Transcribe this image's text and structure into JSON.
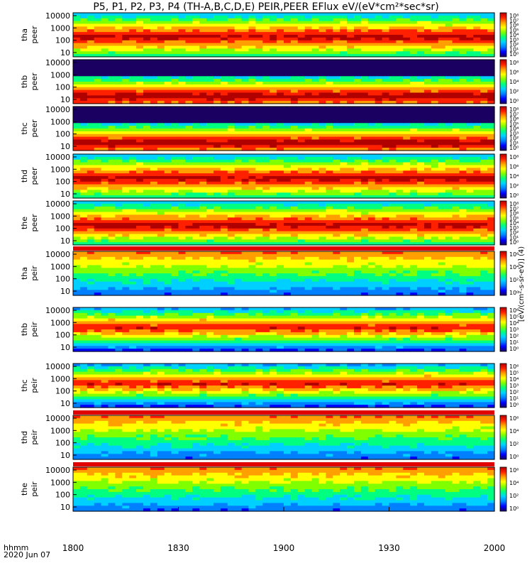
{
  "title": "P5, P1, P2, P3, P4 (TH-A,B,C,D,E) PEIR,PEER EFlux eV/(eV*cm²*sec*sr)",
  "footer": {
    "time_label": "hhmm",
    "date_label": "2020 Jun 07"
  },
  "chart_data": {
    "type": "heatmap",
    "x_ticks": [
      "1800",
      "1830",
      "1900",
      "1930",
      "2000"
    ],
    "x_range": [
      "18:00",
      "20:00"
    ],
    "colorbar_unit_label": "[eV/(cm²-s-sr-eV)] (4)",
    "colorbar_unit_label_ion": "[eV/(cm²-s-sr-eV)]",
    "panels": [
      {
        "probe": "tha",
        "species": "peer",
        "y_ticks": [
          "10000",
          "1000",
          "100",
          "10"
        ],
        "y_scale": "log",
        "colorbar_ticks": [
          "10⁸",
          "10⁷",
          "10⁶",
          "10⁵",
          "10⁴",
          "10³",
          "10²",
          "10¹",
          "10⁰"
        ]
      },
      {
        "probe": "thb",
        "species": "peer",
        "y_ticks": [
          "10000",
          "1000",
          "100",
          "10"
        ],
        "y_scale": "log",
        "colorbar_ticks": [
          "10⁸",
          "10⁶",
          "10⁴",
          "10²",
          "10⁰"
        ]
      },
      {
        "probe": "thc",
        "species": "peer",
        "y_ticks": [
          "10000",
          "1000",
          "100",
          "10"
        ],
        "y_scale": "log",
        "colorbar_ticks": [
          "10⁸",
          "10⁷",
          "10⁶",
          "10⁵",
          "10⁴",
          "10³",
          "10²",
          "10¹",
          "10⁰"
        ]
      },
      {
        "probe": "thd",
        "species": "peer",
        "y_ticks": [
          "10000",
          "1000",
          "100",
          "10"
        ],
        "y_scale": "log",
        "colorbar_ticks": [
          "10⁸",
          "10⁶",
          "10⁴",
          "10²",
          "10⁰"
        ]
      },
      {
        "probe": "the",
        "species": "peer",
        "y_ticks": [
          "10000",
          "1000",
          "100",
          "10"
        ],
        "y_scale": "log",
        "colorbar_ticks": [
          "10⁸",
          "10⁷",
          "10⁶",
          "10⁵",
          "10⁴",
          "10³",
          "10²",
          "10¹",
          "10⁰"
        ]
      },
      {
        "probe": "tha",
        "species": "peir",
        "y_ticks": [
          "10000",
          "1000",
          "100",
          "10"
        ],
        "y_scale": "log",
        "colorbar_ticks": [
          "10⁶",
          "10⁴",
          "10²",
          "10⁰"
        ]
      },
      {
        "probe": "thb",
        "species": "peir",
        "y_ticks": [
          "10000",
          "1000",
          "100",
          "10"
        ],
        "y_scale": "log",
        "colorbar_ticks": [
          "10⁶",
          "10⁵",
          "10⁴",
          "10³",
          "10²",
          "10¹",
          "10⁰"
        ]
      },
      {
        "probe": "thc",
        "species": "peir",
        "y_ticks": [
          "10000",
          "1000",
          "100",
          "10"
        ],
        "y_scale": "log",
        "colorbar_ticks": [
          "10⁶",
          "10⁵",
          "10⁴",
          "10³",
          "10²",
          "10¹",
          "10⁰"
        ]
      },
      {
        "probe": "thd",
        "species": "peir",
        "y_ticks": [
          "10000",
          "1000",
          "100",
          "10"
        ],
        "y_scale": "log",
        "colorbar_ticks": [
          "10⁶",
          "10⁴",
          "10²",
          "10⁰"
        ]
      },
      {
        "probe": "the",
        "species": "peir",
        "y_ticks": [
          "10000",
          "1000",
          "100",
          "10"
        ],
        "y_scale": "log",
        "colorbar_ticks": [
          "10⁶",
          "10⁴",
          "10²",
          "10⁰"
        ]
      }
    ],
    "colormap": [
      "#1a0060",
      "#0000ff",
      "#0080ff",
      "#00d0ff",
      "#00ff80",
      "#80ff00",
      "#ffff00",
      "#ffa000",
      "#ff2000",
      "#b00000"
    ]
  }
}
